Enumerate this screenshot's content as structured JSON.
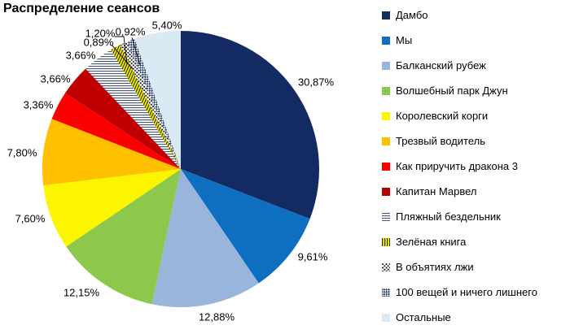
{
  "title": "Распределение сеансов",
  "chart_data": {
    "type": "pie",
    "title": "Распределение сеансов",
    "start_angle_deg": 0,
    "direction": "clockwise",
    "legend_position": "right",
    "value_label_format": "percent-comma-decimal",
    "series": [
      {
        "label": "Дамбо",
        "value": 30.87,
        "display": "30,87%",
        "color": "#132A63",
        "fill": "solid"
      },
      {
        "label": "Мы",
        "value": 9.61,
        "display": "9,61%",
        "color": "#0E6FC1",
        "fill": "solid"
      },
      {
        "label": "Балканский рубеж",
        "value": 12.88,
        "display": "12,88%",
        "color": "#9AB5DC",
        "fill": "solid"
      },
      {
        "label": "Волшебный парк Джун",
        "value": 12.15,
        "display": "12,15%",
        "color": "#8DC74B",
        "fill": "solid"
      },
      {
        "label": "Королевский корги",
        "value": 7.6,
        "display": "7,60%",
        "color": "#FBF500",
        "fill": "solid"
      },
      {
        "label": "Трезвый водитель",
        "value": 7.8,
        "display": "7,80%",
        "color": "#FFC000",
        "fill": "solid"
      },
      {
        "label": "Как приручить дракона 3",
        "value": 3.36,
        "display": "3,36%",
        "color": "#FB0000",
        "fill": "solid"
      },
      {
        "label": "Капитан Марвел",
        "value": 3.66,
        "display": "3,66%",
        "color": "#C00000",
        "fill": "solid"
      },
      {
        "label": "Пляжный бездельник",
        "value": 3.66,
        "display": "3,66%",
        "color": "#4A5A75",
        "fill": "hstripes"
      },
      {
        "label": "Зелёная книга",
        "value": 1.2,
        "display": "1,20%",
        "color": "#333300",
        "fill": "vstripes-yellow"
      },
      {
        "label": "В объятиях лжи",
        "value": 0.89,
        "display": "0,89%",
        "color": "#000000",
        "fill": "dots"
      },
      {
        "label": "100 вещей и ничего лишнего",
        "value": 0.92,
        "display": "0,92%",
        "color": "#1F3864",
        "fill": "diagcheck"
      },
      {
        "label": "Остальные",
        "value": 5.4,
        "display": "5,40%",
        "color": "#DAEAF4",
        "fill": "solid"
      }
    ],
    "patterns": {
      "hstripes": {
        "fg": "#4A5A75",
        "bg": "#FFFFFF"
      },
      "vstripes_yellow": {
        "fg": "#333300",
        "bg": "#FBF500"
      },
      "dots": {
        "fg": "#000000",
        "bg": "#FFFFFF"
      },
      "diagcheck": {
        "fg": "#1F3864",
        "bg": "#FFFFFF"
      }
    }
  }
}
